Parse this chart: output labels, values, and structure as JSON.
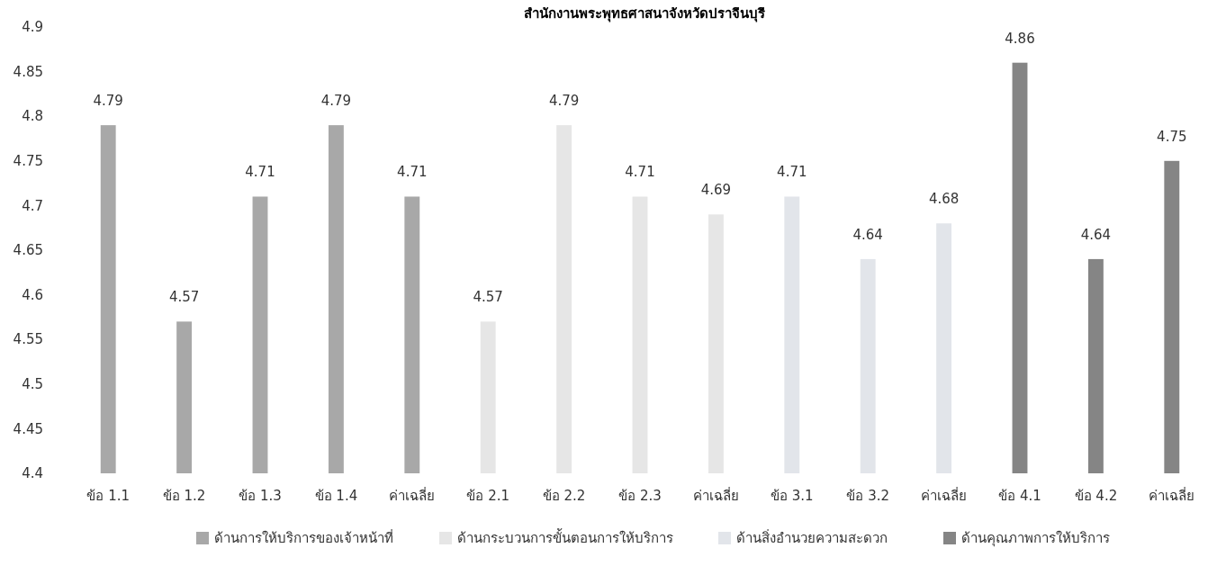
{
  "chart_data": {
    "type": "bar",
    "title": "สำนักงานพระพุทธศาสนาจังหวัดปราจีนบุรี",
    "categories": [
      "ข้อ 1.1",
      "ข้อ 1.2",
      "ข้อ 1.3",
      "ข้อ 1.4",
      "ค่าเฉลี่ย",
      "ข้อ 2.1",
      "ข้อ 2.2",
      "ข้อ 2.3",
      "ค่าเฉลี่ย",
      "ข้อ 3.1",
      "ข้อ 3.2",
      "ค่าเฉลี่ย",
      "ข้อ 4.1",
      "ข้อ 4.2",
      "ค่าเฉลี่ย"
    ],
    "series": [
      {
        "name": "ด้านการให้บริการของเจ้าหน้าที่",
        "color": "#a8a8a8",
        "values": [
          4.79,
          4.57,
          4.71,
          4.79,
          4.71,
          null,
          null,
          null,
          null,
          null,
          null,
          null,
          null,
          null,
          null
        ]
      },
      {
        "name": "ด้านกระบวนการขั้นตอนการให้บริการ",
        "color": "#e6e6e6",
        "values": [
          null,
          null,
          null,
          null,
          null,
          4.57,
          4.79,
          4.71,
          4.69,
          null,
          null,
          null,
          null,
          null,
          null
        ]
      },
      {
        "name": "ด้านสิ่งอำนวยความสะดวก",
        "color": "#e2e5ea",
        "values": [
          null,
          null,
          null,
          null,
          null,
          null,
          null,
          null,
          null,
          4.71,
          4.64,
          4.68,
          null,
          null,
          null
        ]
      },
      {
        "name": "ด้านคุณภาพการให้บริการ",
        "color": "#858585",
        "values": [
          null,
          null,
          null,
          null,
          null,
          null,
          null,
          null,
          null,
          null,
          null,
          null,
          4.86,
          4.64,
          4.75
        ]
      }
    ],
    "ylim": [
      4.4,
      4.9
    ],
    "yticks": [
      4.4,
      4.45,
      4.5,
      4.55,
      4.6,
      4.65,
      4.7,
      4.75,
      4.8,
      4.85,
      4.9
    ],
    "data_labels": true,
    "legend": "bottom",
    "grid": false
  }
}
